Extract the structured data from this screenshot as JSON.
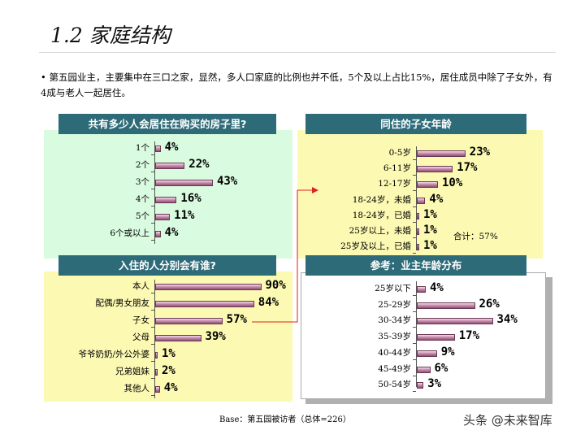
{
  "title": "1.2 家庭结构",
  "summary": "• 第五园业主，主要集中在三口之家，显然，多人口家庭的比例也并不低，5个及以上占比15%，居住成员中除了子女外，有4成与老人一起居住。",
  "colors": {
    "header": "#2e6b79",
    "green_panel": "#d9fbdf",
    "yellow_panel": "#fbf9b2",
    "bar": "#b87aa0",
    "arrow": "#e02020"
  },
  "chart_data": [
    {
      "type": "bar",
      "orientation": "horizontal",
      "title": "共有多少人会居住在购买的房子里?",
      "categories": [
        "1个",
        "2个",
        "3个",
        "4个",
        "5个",
        "6个或以上"
      ],
      "values": [
        4,
        22,
        43,
        16,
        11,
        4
      ],
      "labels": [
        "4%",
        "22%",
        "43%",
        "16%",
        "11%",
        "4%"
      ]
    },
    {
      "type": "bar",
      "orientation": "horizontal",
      "title": "同住的子女年龄",
      "categories": [
        "0-5岁",
        "6-11岁",
        "12-17岁",
        "18-24岁，未婚",
        "18-24岁，已婚",
        "25岁以上，未婚",
        "25岁及以上，已婚"
      ],
      "values": [
        23,
        17,
        10,
        4,
        1,
        1,
        1
      ],
      "labels": [
        "23%",
        "17%",
        "10%",
        "4%",
        "1%",
        "1%",
        "1%"
      ],
      "note": "合计：57%"
    },
    {
      "type": "bar",
      "orientation": "horizontal",
      "title": "入住的人分别会有谁?",
      "categories": [
        "本人",
        "配偶/男女朋友",
        "子女",
        "父母",
        "爷爷奶奶/外公外婆",
        "兄弟姐妹",
        "其他人"
      ],
      "values": [
        90,
        84,
        57,
        39,
        1,
        2,
        4
      ],
      "labels": [
        "90%",
        "84%",
        "57%",
        "39%",
        "1%",
        "2%",
        "4%"
      ]
    },
    {
      "type": "bar",
      "orientation": "horizontal",
      "title": "参考：业主年龄分布",
      "categories": [
        "25岁以下",
        "25-29岁",
        "30-34岁",
        "35-39岁",
        "40-44岁",
        "45-49岁",
        "50-54岁"
      ],
      "values": [
        4,
        26,
        34,
        17,
        9,
        6,
        3
      ],
      "labels": [
        "4%",
        "26%",
        "34%",
        "17%",
        "9%",
        "6%",
        "3%"
      ]
    }
  ],
  "base_note": "Base：第五园被访者（总体=226）",
  "watermark": "头条 @未来智库"
}
